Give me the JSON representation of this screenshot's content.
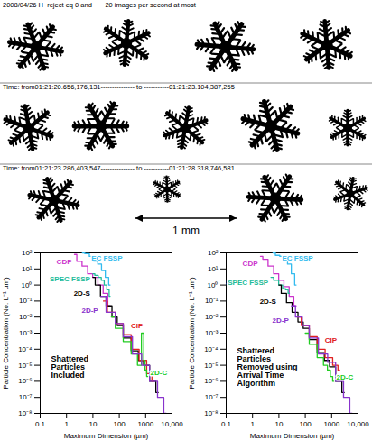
{
  "images": {
    "panels": [
      {
        "header": "2008/04/26 H  reject eq 0 and       20 images per second at most"
      },
      {
        "header": "Time: from01:21:20.656,176,131--------------- to -----------01:21:23.104,387,255"
      },
      {
        "header": "Time: from01:21:23.286,403,547--------------- to -----------01:21:28.318,746,581"
      }
    ],
    "scale_bar": "1 mm"
  },
  "chart_data": [
    {
      "type": "line",
      "annotation": "Shattered Particles Included",
      "x_label": "Maximum Dimension (µm)",
      "y_label": "Particle Concentration (No. L⁻¹ µm)",
      "log": true,
      "xlim": [
        0.1,
        10000
      ],
      "ylim": [
        1e-08,
        100
      ],
      "xticks": [
        0.1,
        1,
        10,
        100,
        1000,
        {
          "value": 10000,
          "label": "10,000"
        }
      ],
      "yticks": [
        {
          "value": 100,
          "label": "10²"
        },
        {
          "value": 10,
          "label": "10¹"
        },
        {
          "value": 1,
          "label": "10⁰"
        },
        {
          "value": 0.1,
          "label": "10⁻¹"
        },
        {
          "value": 0.01,
          "label": "10⁻²"
        },
        {
          "value": 0.001,
          "label": "10⁻³"
        },
        {
          "value": 0.0001,
          "label": "10⁻⁴"
        },
        {
          "value": 1e-05,
          "label": "10⁻⁵"
        },
        {
          "value": 1e-06,
          "label": "10⁻⁶"
        },
        {
          "value": 1e-07,
          "label": "10⁻⁷"
        },
        {
          "value": 1e-08,
          "label": "10⁻⁸"
        }
      ],
      "series": [
        {
          "name": "CDP",
          "color": "#cc33cc",
          "x": [
            2,
            3,
            5,
            8,
            12,
            20,
            30,
            45
          ],
          "values": [
            80,
            30,
            15,
            5,
            3,
            1,
            0.3,
            0.05
          ]
        },
        {
          "name": "EC FSSP",
          "color": "#33bbee",
          "x": [
            4,
            6,
            9,
            13,
            18,
            25,
            35,
            45
          ],
          "values": [
            100,
            90,
            60,
            30,
            20,
            8,
            3,
            1
          ]
        },
        {
          "name": "SPEC FSSP",
          "color": "#22bb99",
          "x": [
            10,
            14,
            18,
            24,
            30,
            38,
            45
          ],
          "values": [
            5,
            4,
            3,
            2,
            1,
            0.5,
            0.2
          ]
        },
        {
          "name": "2D-S",
          "color": "#000000",
          "x": [
            10,
            15,
            25,
            40,
            70,
            100,
            200,
            400,
            700,
            1000,
            2000,
            3000
          ],
          "values": [
            3,
            1,
            0.2,
            0.05,
            0.01,
            0.003,
            0.0005,
            8e-05,
            2e-05,
            1e-05,
            1e-06,
            2e-07
          ]
        },
        {
          "name": "CIP",
          "color": "#e02020",
          "x": [
            25,
            50,
            100,
            200,
            400,
            800,
            1500,
            2000
          ],
          "values": [
            0.1,
            0.02,
            0.004,
            0.0008,
            0.0001,
            2e-05,
            3e-06,
            1e-06
          ]
        },
        {
          "name": "2D-C",
          "color": "#22cc22",
          "x": [
            50,
            100,
            200,
            400,
            600,
            800,
            900,
            1000,
            1200
          ],
          "values": [
            0.01,
            0.002,
            0.0003,
            5e-05,
            1e-05,
            0.001,
            2e-05,
            5e-06,
            2e-06
          ]
        },
        {
          "name": "2D-P",
          "color": "#8833cc",
          "x": [
            20,
            50,
            100,
            200,
            500,
            1000,
            2000,
            4000,
            6000
          ],
          "values": [
            0.2,
            0.02,
            0.004,
            0.0006,
            5e-05,
            1e-05,
            1e-06,
            1e-07,
            1e-08
          ]
        }
      ]
    },
    {
      "type": "line",
      "annotation": "Shattered Particles Removed using Arrival Time Algorithm",
      "x_label": "Maximum Dimension (µm)",
      "y_label": "Particle Concentration (No. L⁻¹ µm)",
      "log": true,
      "xlim": [
        0.1,
        10000
      ],
      "ylim": [
        1e-08,
        100
      ],
      "xticks": [
        0.1,
        1,
        10,
        100,
        1000,
        {
          "value": 10000,
          "label": "10,000"
        }
      ],
      "yticks": [
        {
          "value": 100,
          "label": "10²"
        },
        {
          "value": 10,
          "label": "10¹"
        },
        {
          "value": 1,
          "label": "10⁰"
        },
        {
          "value": 0.1,
          "label": "10⁻¹"
        },
        {
          "value": 0.01,
          "label": "10⁻²"
        },
        {
          "value": 0.001,
          "label": "10⁻³"
        },
        {
          "value": 0.0001,
          "label": "10⁻⁴"
        },
        {
          "value": 1e-05,
          "label": "10⁻⁵"
        },
        {
          "value": 1e-06,
          "label": "10⁻⁶"
        },
        {
          "value": 1e-07,
          "label": "10⁻⁷"
        },
        {
          "value": 1e-08,
          "label": "10⁻⁸"
        }
      ],
      "series": [
        {
          "name": "CDP",
          "color": "#cc33cc",
          "x": [
            2,
            3,
            5,
            8,
            12,
            20,
            30,
            45
          ],
          "values": [
            60,
            40,
            15,
            5,
            2,
            0.8,
            0.2,
            0.05
          ]
        },
        {
          "name": "EC FSSP",
          "color": "#33bbee",
          "x": [
            6,
            9,
            13,
            18,
            25,
            35,
            45
          ],
          "values": [
            100,
            70,
            60,
            40,
            20,
            5,
            1
          ]
        },
        {
          "name": "SPEC FSSP",
          "color": "#22bb99",
          "x": [
            5,
            8,
            12,
            16,
            20,
            25
          ],
          "values": [
            3,
            2,
            1,
            0.6,
            0.5,
            0.3
          ]
        },
        {
          "name": "2D-S",
          "color": "#000000",
          "x": [
            10,
            15,
            25,
            40,
            70,
            100,
            200,
            400,
            700,
            1000,
            2000,
            3000
          ],
          "values": [
            1,
            0.3,
            0.08,
            0.02,
            0.005,
            0.002,
            0.0004,
            6e-05,
            2e-05,
            8e-06,
            1e-06,
            2e-07
          ]
        },
        {
          "name": "CIP",
          "color": "#e02020",
          "x": [
            50,
            100,
            200,
            400,
            800,
            1500,
            2000
          ],
          "values": [
            0.01,
            0.003,
            0.0006,
            0.0001,
            3e-05,
            1e-05,
            5e-06
          ]
        },
        {
          "name": "2D-C",
          "color": "#22cc22",
          "x": [
            100,
            200,
            400,
            600,
            800,
            1000,
            1200
          ],
          "values": [
            0.001,
            0.0002,
            3e-05,
            1e-05,
            5e-06,
            2e-06,
            1e-06
          ]
        },
        {
          "name": "2D-P",
          "color": "#8833cc",
          "x": [
            30,
            60,
            100,
            200,
            500,
            1000,
            2000,
            4000,
            6000
          ],
          "values": [
            0.05,
            0.01,
            0.003,
            0.0005,
            5e-05,
            1.5e-05,
            1e-06,
            1e-07,
            1e-08
          ]
        }
      ]
    }
  ]
}
